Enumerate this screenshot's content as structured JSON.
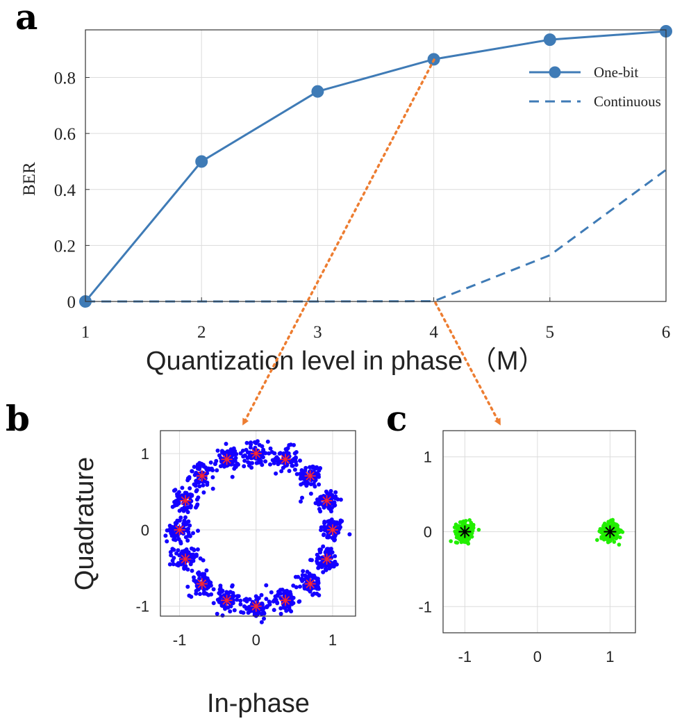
{
  "panels": {
    "a": "a",
    "b": "b",
    "c": "c"
  },
  "chart_data": [
    {
      "panel": "a",
      "type": "line",
      "xlabel": "Quantization level in phase （M）",
      "ylabel": "BER",
      "xlim": [
        1,
        6
      ],
      "ylim": [
        0,
        0.97
      ],
      "xticks": [
        1,
        2,
        3,
        4,
        5,
        6
      ],
      "yticks": [
        0,
        0.2,
        0.4,
        0.6,
        0.8
      ],
      "ytick_labels": [
        "0",
        "0.2",
        "0.4",
        "0.6",
        "0.8"
      ],
      "grid": true,
      "legend_position": "top-right",
      "color": "#3f7bb6",
      "series": [
        {
          "name": "One-bit",
          "style": "solid-marker",
          "x": [
            1,
            2,
            3,
            4,
            5,
            6
          ],
          "values": [
            0,
            0.5,
            0.75,
            0.865,
            0.935,
            0.965
          ]
        },
        {
          "name": "Continuous",
          "style": "dashed",
          "x": [
            1,
            2,
            3,
            4,
            5,
            6
          ],
          "values": [
            0,
            0,
            0,
            0.001,
            0.165,
            0.47
          ]
        }
      ]
    },
    {
      "panel": "b",
      "type": "scatter",
      "xlabel": "In-phase",
      "ylabel": "Quadrature",
      "xlim": [
        -1.25,
        1.3
      ],
      "ylim": [
        -1.13,
        1.3
      ],
      "xticks": [
        -1,
        0,
        1
      ],
      "yticks": [
        -1,
        0,
        1
      ],
      "grid": true,
      "cloud_color": "#1400ff",
      "ideal_marker_color": "#ff2a2a",
      "constellation": "16-PSK",
      "ideal_points": {
        "count": 16,
        "radius": 1
      },
      "noise_std": 0.08
    },
    {
      "panel": "c",
      "type": "scatter",
      "xlim": [
        -1.3,
        1.35
      ],
      "ylim": [
        -1.35,
        1.35
      ],
      "xticks": [
        -1,
        0,
        1
      ],
      "yticks": [
        -1,
        0,
        1
      ],
      "grid": true,
      "cloud_color": "#22ee00",
      "ideal_marker_color": "#000000",
      "constellation": "BPSK",
      "ideal_points": {
        "x": [
          -1,
          1
        ],
        "y": [
          0,
          0
        ]
      },
      "noise_std": 0.06
    }
  ],
  "annotations": {
    "arrow_color": "#ed7d31",
    "arrows": [
      {
        "from": "panel a, continuous curve at x = 4",
        "to": "panel c"
      },
      {
        "from": "panel a, one-bit point at x = 4",
        "to": "panel b"
      }
    ]
  }
}
